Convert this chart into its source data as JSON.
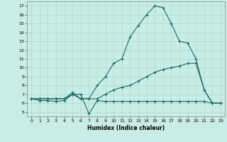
{
  "xlabel": "Humidex (Indice chaleur)",
  "background_color": "#c8ece6",
  "grid_color": "#aaddcc",
  "line_color": "#1a6b63",
  "xlim": [
    -0.5,
    23.5
  ],
  "ylim": [
    4.5,
    17.5
  ],
  "yticks": [
    5,
    6,
    7,
    8,
    9,
    10,
    11,
    12,
    13,
    14,
    15,
    16,
    17
  ],
  "xticks": [
    0,
    1,
    2,
    3,
    4,
    5,
    6,
    7,
    8,
    9,
    10,
    11,
    12,
    13,
    14,
    15,
    16,
    17,
    18,
    19,
    20,
    21,
    22,
    23
  ],
  "series": [
    {
      "x": [
        0,
        1,
        2,
        3,
        4,
        5,
        6,
        7,
        8,
        9,
        10,
        11,
        12,
        13,
        14,
        15,
        16,
        17,
        18,
        19,
        20,
        21,
        22,
        23
      ],
      "y": [
        6.5,
        6.3,
        6.3,
        6.2,
        6.3,
        7.0,
        7.0,
        4.8,
        6.3,
        6.2,
        6.2,
        6.2,
        6.2,
        6.2,
        6.2,
        6.2,
        6.2,
        6.2,
        6.2,
        6.2,
        6.2,
        6.2,
        6.0,
        6.0
      ]
    },
    {
      "x": [
        0,
        1,
        2,
        3,
        4,
        5,
        6,
        7,
        8,
        9,
        10,
        11,
        12,
        13,
        14,
        15,
        16,
        17,
        18,
        19,
        20,
        21,
        22,
        23
      ],
      "y": [
        6.5,
        6.5,
        6.5,
        6.5,
        6.5,
        7.0,
        6.5,
        6.5,
        6.5,
        7.0,
        7.5,
        7.8,
        8.0,
        8.5,
        9.0,
        9.5,
        9.8,
        10.0,
        10.2,
        10.5,
        10.5,
        7.5,
        6.0,
        6.0
      ]
    },
    {
      "x": [
        0,
        1,
        2,
        3,
        4,
        5,
        6,
        7,
        8,
        9,
        10,
        11,
        12,
        13,
        14,
        15,
        16,
        17,
        18,
        19,
        20,
        21,
        22,
        23
      ],
      "y": [
        6.5,
        6.5,
        6.5,
        6.5,
        6.5,
        7.2,
        6.5,
        6.5,
        8.0,
        9.0,
        10.5,
        11.0,
        13.5,
        14.8,
        16.0,
        17.0,
        16.8,
        15.0,
        13.0,
        12.8,
        11.0,
        7.5,
        6.0,
        6.0
      ]
    }
  ]
}
